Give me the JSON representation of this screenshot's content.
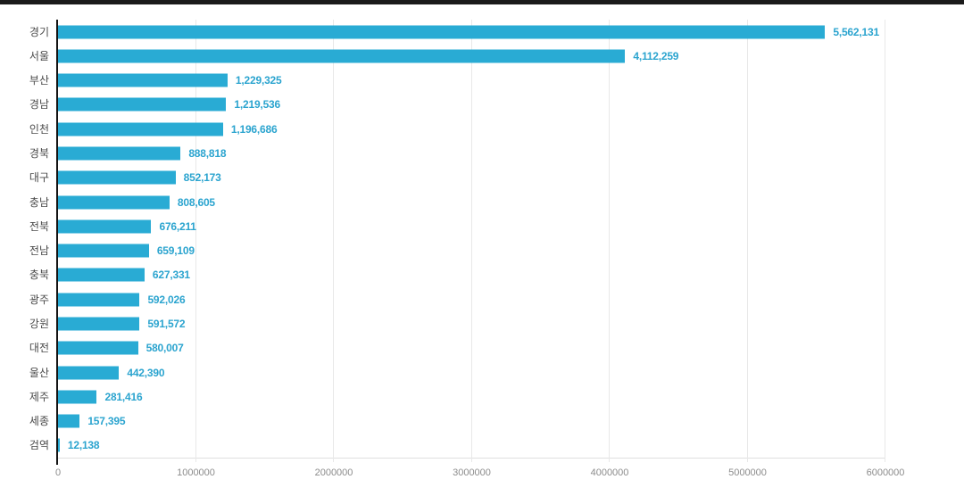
{
  "page": {
    "background": "#ffffff",
    "top_strip_color": "#1b1b1b"
  },
  "chart_data": {
    "type": "bar",
    "orientation": "horizontal",
    "title": "",
    "xlabel": "",
    "ylabel": "",
    "categories": [
      "경기",
      "서울",
      "부산",
      "경남",
      "인천",
      "경북",
      "대구",
      "충남",
      "전북",
      "전남",
      "충북",
      "광주",
      "강원",
      "대전",
      "울산",
      "제주",
      "세종",
      "검역"
    ],
    "values": [
      5562131,
      4112259,
      1229325,
      1219536,
      1196686,
      888818,
      852173,
      808605,
      676211,
      659109,
      627331,
      592026,
      591572,
      580007,
      442390,
      281416,
      157395,
      12138
    ],
    "value_labels": [
      "5,562,131",
      "4,112,259",
      "1,229,325",
      "1,219,536",
      "1,196,686",
      "888,818",
      "852,173",
      "808,605",
      "676,211",
      "659,109",
      "627,331",
      "592,026",
      "591,572",
      "580,007",
      "442,390",
      "281,416",
      "157,395",
      "12,138"
    ],
    "xlim": [
      0,
      6000000
    ],
    "x_ticks": [
      0,
      1000000,
      2000000,
      3000000,
      4000000,
      5000000,
      6000000
    ],
    "x_tick_labels": [
      "0",
      "1000000",
      "2000000",
      "3000000",
      "4000000",
      "5000000",
      "6000000"
    ],
    "grid": "vertical",
    "legend": "none",
    "colors": {
      "bar": "#29abd4",
      "value_label": "#2ba4cf",
      "category_label": "#4a4a4a",
      "tick_label": "#8c8c8c",
      "gridline": "#e8e8e8",
      "axis_line": "#141414"
    }
  }
}
